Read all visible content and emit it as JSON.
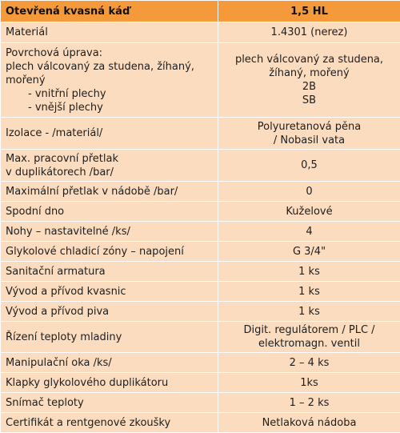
{
  "header": {
    "col1": "Otevřená kvasná káď",
    "col2": "1,5 HL"
  },
  "rows": [
    {
      "label": "Materiál",
      "value": "1.4301 (nerez)"
    },
    {
      "label_lines": [
        "Povrchová úprava:",
        "plech válcovaný za studena, žíhaný,",
        "mořený",
        "- vnitřní plechy",
        "- vnější plechy"
      ],
      "value_lines": [
        "plech válcovaný za studena,",
        "žíhaný, mořený",
        "2B",
        "SB"
      ]
    },
    {
      "label": "Izolace - /materiál/",
      "value_lines": [
        "Polyuretanová pěna",
        "/ Nobasil vata"
      ]
    },
    {
      "label_lines": [
        "Max. pracovní přetlak",
        "v duplikátorech /bar/"
      ],
      "value": "0,5"
    },
    {
      "label": "Maximální přetlak v nádobě /bar/",
      "value": "0"
    },
    {
      "label": "Spodní dno",
      "value": "Kuželové"
    },
    {
      "label": "Nohy – nastavitelné /ks/",
      "value": "4"
    },
    {
      "label": "Glykolové chladicí zóny –  napojení",
      "value": "G 3/4\""
    },
    {
      "label": "Sanitační armatura",
      "value": "1 ks"
    },
    {
      "label": "Vývod a přívod kvasnic",
      "value": "1 ks"
    },
    {
      "label": "Vývod a přívod piva",
      "value": "1 ks"
    },
    {
      "label": "Řízení teploty mladiny",
      "value_lines": [
        "Digit. regulátorem / PLC /",
        "elektromagn. ventil"
      ]
    },
    {
      "label": "Manipulační oka /ks/",
      "value": "2 – 4  ks"
    },
    {
      "label": "Klapky glykolového duplikátoru",
      "value": "1ks"
    },
    {
      "label": "Snímač teploty",
      "value": "1 – 2  ks"
    },
    {
      "label": "Certifikát a rentgenové zkoušky",
      "value": "Netlaková nádoba"
    }
  ],
  "colors": {
    "header_bg": "#f59a3a",
    "row_bg": "#fbdcbf",
    "grid": "#ffffff"
  }
}
